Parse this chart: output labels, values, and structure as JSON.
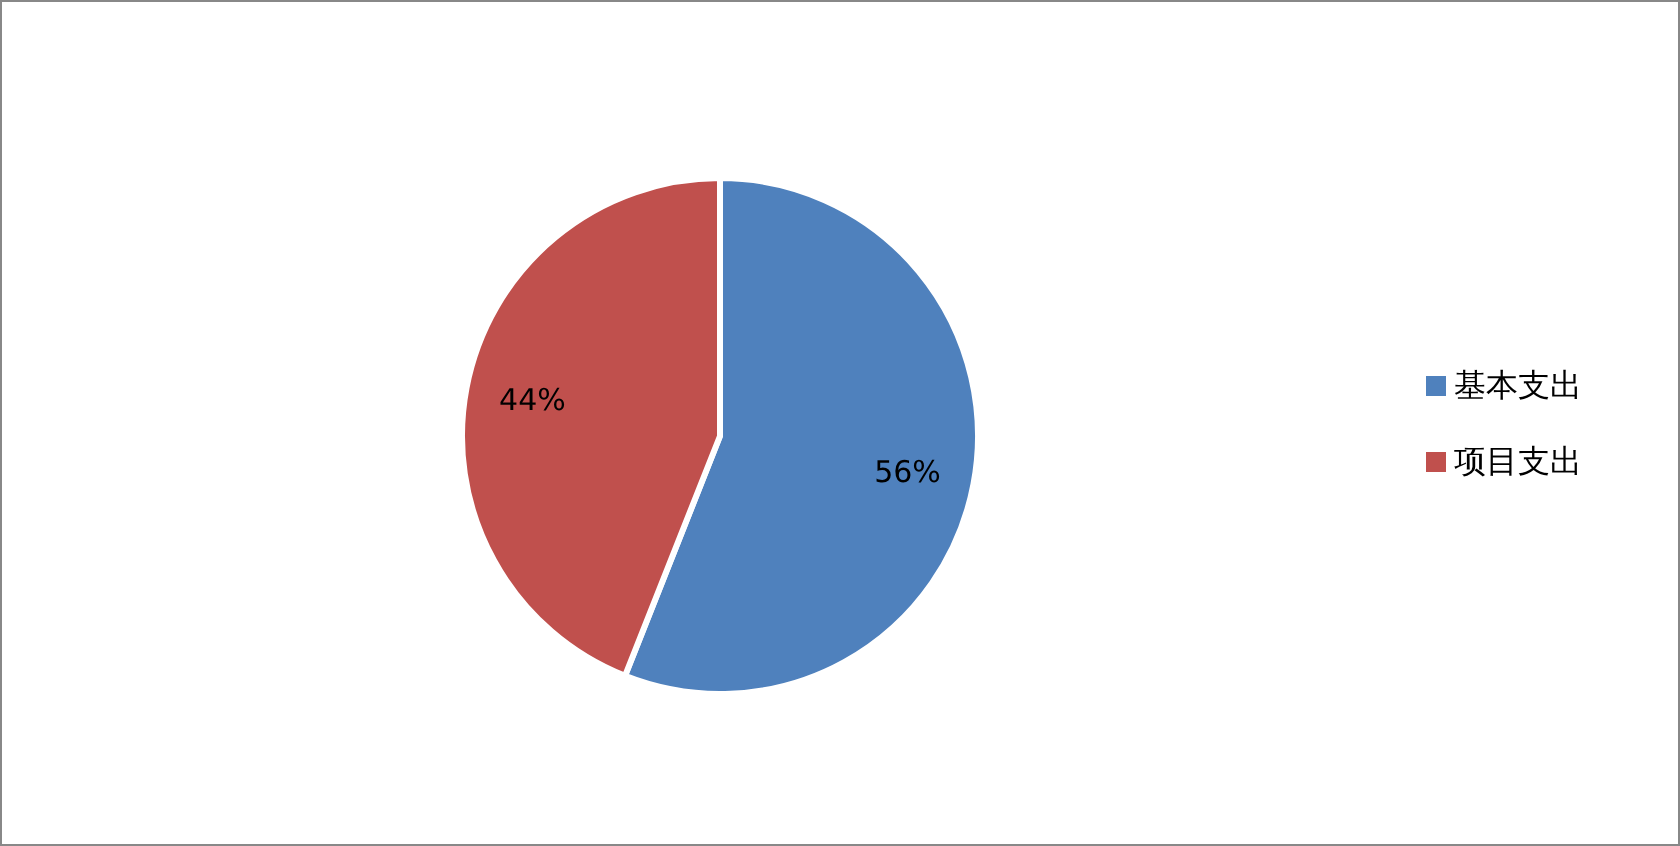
{
  "chart_data": {
    "type": "pie",
    "categories": [
      "基本支出",
      "项目支出"
    ],
    "values": [
      56,
      44
    ],
    "colors": [
      "#4f81bd",
      "#c0504d"
    ],
    "value_labels": [
      "56%",
      "44%"
    ],
    "legend": "right"
  }
}
